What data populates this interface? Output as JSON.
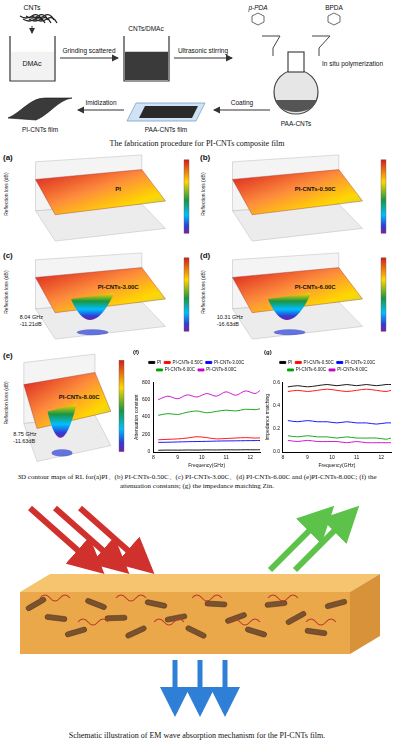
{
  "fabrication": {
    "labels": {
      "cnts": "CNTs",
      "dmac": "DMAc",
      "grinding": "Grinding scattered",
      "cnts_dmac": "CNTs/DMAc",
      "ultrasonic": "Ultrasonic stirring",
      "ppda": "p-PDA",
      "bpda": "BPDA",
      "polymerization": "In situ polymerization",
      "imidization": "Imidization",
      "coating": "Coating",
      "pi_film": "PI-CNTs film",
      "paa_film": "PAA-CNTs film",
      "paa_cnts": "PAA-CNTs"
    },
    "caption": "The fabrication procedure for PI-CNTs composite film"
  },
  "rl_maps": {
    "z_label": "Reflection loss (dB)",
    "panels": [
      {
        "tag": "(a)",
        "name": "PI"
      },
      {
        "tag": "(b)",
        "name": "PI-CNTs-0.50C"
      },
      {
        "tag": "(c)",
        "name": "PI-CNTs-3.00C",
        "peak": [
          "8.04 GHz",
          "-11.21dB"
        ]
      },
      {
        "tag": "(d)",
        "name": "PI-CNTs-6.00C",
        "peak": [
          "10.31 GHz",
          "-16.63dB"
        ]
      },
      {
        "tag": "(e)",
        "name": "PI-CNTs-8.00C",
        "peak": [
          "8.75 GHz",
          "-11.63dB"
        ]
      }
    ]
  },
  "chart_data": [
    {
      "type": "line",
      "title": "(f)",
      "x_label": "Frequency(GHz)",
      "y_label": "Attenuation constant",
      "x": [
        8.2,
        8.6,
        9.0,
        9.4,
        9.8,
        10.2,
        10.6,
        11.0,
        11.4,
        11.8,
        12.2,
        12.4
      ],
      "xlim": [
        8,
        12.4
      ],
      "xticks": [
        8,
        9,
        10,
        11,
        12
      ],
      "ylim": [
        0,
        800
      ],
      "yticks": [
        0,
        200,
        400,
        600,
        800
      ],
      "grid": false,
      "legend": "top",
      "series": [
        {
          "name": "PI",
          "color": "#000000",
          "values": [
            20,
            22,
            21,
            23,
            22,
            24,
            23,
            25,
            24,
            26,
            25,
            26
          ]
        },
        {
          "name": "PI-CNTs-0.50C",
          "color": "#ff0000",
          "values": [
            140,
            145,
            150,
            160,
            175,
            165,
            150,
            155,
            160,
            165,
            160,
            162
          ]
        },
        {
          "name": "PI-CNTs-3.00C",
          "color": "#0000ff",
          "values": [
            110,
            112,
            115,
            118,
            120,
            122,
            125,
            127,
            128,
            130,
            131,
            132
          ]
        },
        {
          "name": "PI-CNTs-6.00C",
          "color": "#00a000",
          "values": [
            420,
            440,
            430,
            455,
            470,
            450,
            465,
            480,
            470,
            490,
            485,
            495
          ]
        },
        {
          "name": "PI-CNTs-8.00C",
          "color": "#cc00cc",
          "values": [
            600,
            640,
            610,
            655,
            630,
            670,
            640,
            690,
            650,
            700,
            670,
            705
          ]
        }
      ]
    },
    {
      "type": "line",
      "title": "(g)",
      "x_label": "Frequency(GHz)",
      "y_label": "Impedance matching",
      "x": [
        8.2,
        8.6,
        9.0,
        9.4,
        9.8,
        10.2,
        10.6,
        11.0,
        11.4,
        11.8,
        12.2,
        12.4
      ],
      "xlim": [
        8,
        12.4
      ],
      "xticks": [
        8,
        9,
        10,
        11,
        12
      ],
      "ylim": [
        0,
        0.6
      ],
      "yticks": [
        {
          "value": 0,
          "label": "0.0"
        },
        0.2,
        0.4,
        0.6
      ],
      "grid": false,
      "legend": "top",
      "series": [
        {
          "name": "PI",
          "color": "#000000",
          "values": [
            0.56,
            0.57,
            0.56,
            0.57,
            0.58,
            0.57,
            0.58,
            0.57,
            0.58,
            0.57,
            0.58,
            0.58
          ]
        },
        {
          "name": "PI-CNTs-0.50C",
          "color": "#ff0000",
          "values": [
            0.52,
            0.53,
            0.52,
            0.53,
            0.54,
            0.53,
            0.52,
            0.53,
            0.54,
            0.53,
            0.52,
            0.53
          ]
        },
        {
          "name": "PI-CNTs-3.00C",
          "color": "#0000ff",
          "values": [
            0.27,
            0.26,
            0.27,
            0.26,
            0.26,
            0.25,
            0.26,
            0.25,
            0.25,
            0.24,
            0.25,
            0.25
          ]
        },
        {
          "name": "PI-CNTs-6.00C",
          "color": "#00a000",
          "values": [
            0.14,
            0.13,
            0.14,
            0.13,
            0.13,
            0.12,
            0.13,
            0.12,
            0.12,
            0.12,
            0.11,
            0.12
          ]
        },
        {
          "name": "PI-CNTs-8.00C",
          "color": "#cc00cc",
          "values": [
            0.1,
            0.09,
            0.1,
            0.09,
            0.09,
            0.09,
            0.08,
            0.09,
            0.08,
            0.08,
            0.08,
            0.08
          ]
        }
      ]
    }
  ],
  "figure_caption": "3D contour maps of RL for(a)PI、(b) PI-CNTs-0.50C、(c) PI-CNTs-3.00C、(d) PI-CNTs-6.00C and (e)PI-CNTs-8.00C; (f) the attenuation constants; (g) the impedance matching Zin.",
  "schematic": {
    "caption": "Schematic illustration of EM wave absorption mechanism for the PI-CNTs film."
  }
}
